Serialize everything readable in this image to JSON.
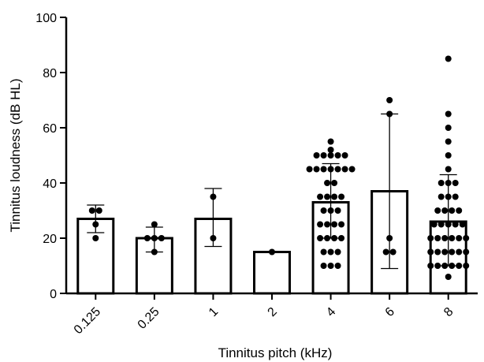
{
  "chart_data": {
    "type": "bar",
    "xlabel": "Tinnitus pitch (kHz)",
    "ylabel": "Tinnitus loudness (dB HL)",
    "ylim": [
      0,
      100
    ],
    "yticks": [
      "0",
      "20",
      "40",
      "60",
      "80",
      "100"
    ],
    "categories": [
      "0.125",
      "0.25",
      "1",
      "2",
      "4",
      "6",
      "8"
    ],
    "means": [
      27,
      20,
      27,
      15,
      33,
      37,
      26
    ],
    "error_bars": [
      {
        "low": 22,
        "high": 32
      },
      {
        "low": 15,
        "high": 24
      },
      {
        "low": 17,
        "high": 38
      },
      {
        "low": 15,
        "high": 15
      },
      {
        "low": 20,
        "high": 47
      },
      {
        "low": 9,
        "high": 65
      },
      {
        "low": 10,
        "high": 43
      }
    ],
    "points": [
      [
        30,
        30,
        25,
        20
      ],
      [
        25,
        20,
        20,
        20,
        15
      ],
      [
        35,
        20
      ],
      [
        15
      ],
      [
        55,
        52,
        50,
        50,
        50,
        50,
        50,
        45,
        45,
        45,
        45,
        45,
        45,
        45,
        40,
        40,
        35,
        35,
        35,
        35,
        30,
        30,
        30,
        25,
        25,
        25,
        25,
        20,
        20,
        20,
        20,
        15,
        15,
        15,
        10,
        10,
        10
      ],
      [
        70,
        65,
        20,
        15,
        15
      ],
      [
        85,
        65,
        60,
        55,
        50,
        45,
        40,
        40,
        40,
        35,
        35,
        35,
        30,
        30,
        30,
        30,
        25,
        25,
        25,
        25,
        25,
        20,
        20,
        20,
        20,
        20,
        20,
        15,
        15,
        15,
        15,
        15,
        15,
        10,
        10,
        10,
        10,
        10,
        10,
        6
      ]
    ],
    "grid": false,
    "legend": "none"
  }
}
